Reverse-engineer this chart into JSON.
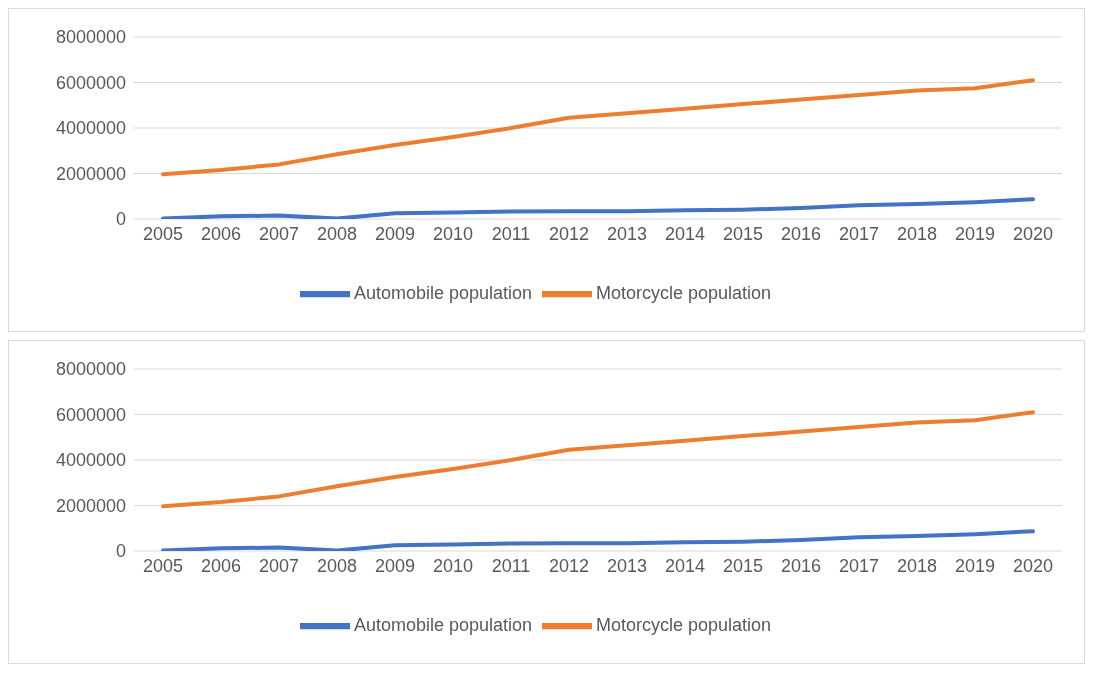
{
  "chart_data": [
    {
      "type": "line",
      "categories": [
        "2005",
        "2006",
        "2007",
        "2008",
        "2009",
        "2010",
        "2011",
        "2012",
        "2013",
        "2014",
        "2015",
        "2016",
        "2017",
        "2018",
        "2019",
        "2020"
      ],
      "series": [
        {
          "name": "Automobile population",
          "color": "#4472c4",
          "values": [
            20000,
            120000,
            150000,
            20000,
            250000,
            290000,
            330000,
            340000,
            340000,
            380000,
            410000,
            480000,
            600000,
            660000,
            740000,
            870000
          ]
        },
        {
          "name": "Motorcycle population",
          "color": "#ed7d31",
          "values": [
            1970000,
            2150000,
            2400000,
            2850000,
            3250000,
            3600000,
            4000000,
            4450000,
            4650000,
            4850000,
            5050000,
            5250000,
            5450000,
            5650000,
            5750000,
            6100000
          ]
        }
      ],
      "ylim": [
        0,
        8000000
      ],
      "yticks": [
        0,
        2000000,
        4000000,
        6000000,
        8000000
      ],
      "grid": "y",
      "legend": "bottom",
      "marker": "none",
      "line_style": "solid"
    },
    {
      "type": "line",
      "categories": [
        "2005",
        "2006",
        "2007",
        "2008",
        "2009",
        "2010",
        "2011",
        "2012",
        "2013",
        "2014",
        "2015",
        "2016",
        "2017",
        "2018",
        "2019",
        "2020"
      ],
      "series": [
        {
          "name": "Automobile population",
          "color": "#4472c4",
          "values": [
            20000,
            120000,
            150000,
            20000,
            250000,
            290000,
            330000,
            340000,
            340000,
            380000,
            410000,
            480000,
            600000,
            660000,
            740000,
            870000
          ]
        },
        {
          "name": "Motorcycle population",
          "color": "#ed7d31",
          "values": [
            1970000,
            2150000,
            2400000,
            2850000,
            3250000,
            3600000,
            4000000,
            4450000,
            4650000,
            4850000,
            5050000,
            5250000,
            5450000,
            5650000,
            5750000,
            6100000
          ]
        }
      ],
      "ylim": [
        0,
        8000000
      ],
      "yticks": [
        0,
        2000000,
        4000000,
        6000000,
        8000000
      ],
      "grid": "y",
      "legend": "bottom",
      "marker": "none",
      "line_style": "solid"
    }
  ]
}
